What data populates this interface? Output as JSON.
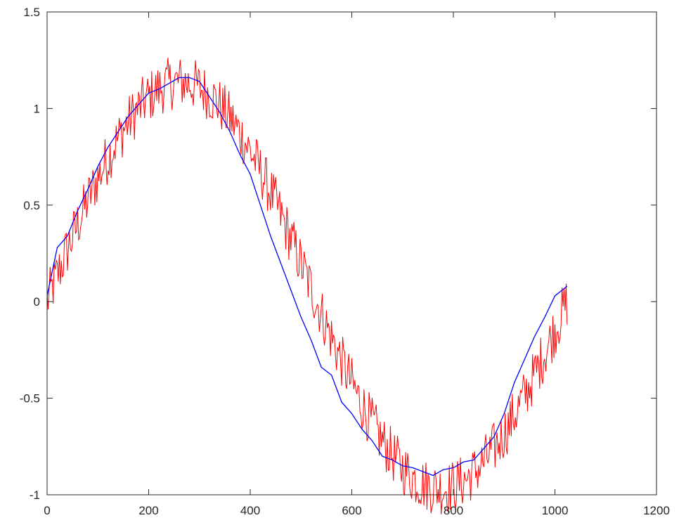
{
  "chart_data": {
    "type": "line",
    "title": "",
    "xlabel": "",
    "ylabel": "",
    "xlim": [
      0,
      1200
    ],
    "ylim": [
      -1,
      1.5
    ],
    "xticks": [
      0,
      200,
      400,
      600,
      800,
      1000,
      1200
    ],
    "xtick_labels": [
      "0",
      "200",
      "400",
      "600",
      "800",
      "1000",
      "1200"
    ],
    "yticks": [
      -1,
      -0.5,
      0,
      0.5,
      1,
      1.5
    ],
    "ytick_labels": [
      "-1",
      "-0.5",
      "0",
      "0.5",
      "1",
      "1.5"
    ],
    "grid": false,
    "box": true,
    "series": [
      {
        "color": "#ff0000",
        "style": "noisy",
        "x_range": [
          0,
          1024
        ],
        "base": {
          "amplitude": 1.05,
          "period": 1024,
          "offset": 0.12
        },
        "noise_amplitude": 0.14
      },
      {
        "color": "#0000ff",
        "style": "line",
        "x": [
          0,
          20,
          40,
          60,
          80,
          100,
          120,
          140,
          160,
          180,
          200,
          220,
          240,
          260,
          280,
          300,
          320,
          340,
          360,
          380,
          400,
          420,
          440,
          460,
          480,
          500,
          520,
          540,
          560,
          580,
          600,
          620,
          640,
          660,
          680,
          700,
          720,
          740,
          760,
          780,
          800,
          820,
          840,
          860,
          880,
          900,
          920,
          940,
          960,
          980,
          1000,
          1024
        ],
        "y": [
          0.03,
          0.28,
          0.34,
          0.47,
          0.58,
          0.7,
          0.8,
          0.88,
          0.96,
          1.02,
          1.08,
          1.1,
          1.13,
          1.16,
          1.16,
          1.14,
          1.06,
          0.98,
          0.88,
          0.76,
          0.66,
          0.5,
          0.34,
          0.2,
          0.06,
          -0.08,
          -0.2,
          -0.34,
          -0.38,
          -0.52,
          -0.58,
          -0.66,
          -0.72,
          -0.8,
          -0.82,
          -0.85,
          -0.86,
          -0.88,
          -0.9,
          -0.87,
          -0.86,
          -0.83,
          -0.82,
          -0.76,
          -0.7,
          -0.58,
          -0.42,
          -0.3,
          -0.18,
          -0.08,
          0.03,
          0.08
        ]
      }
    ]
  }
}
